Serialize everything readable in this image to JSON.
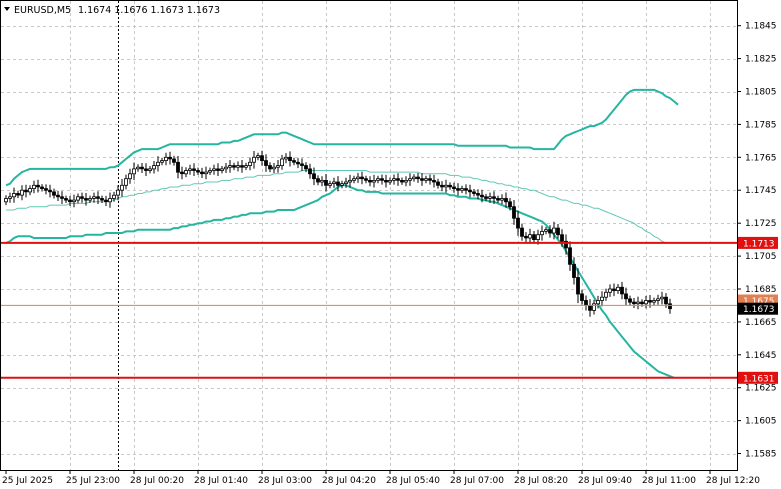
{
  "header": {
    "symbol": "EURUSD,M5",
    "ohlc": "1.1674 1.1676 1.1673 1.1673",
    "dropdown_icon": "triangle-down-icon"
  },
  "colors": {
    "background": "#ffffff",
    "grid": "#c8c8c8",
    "candle": "#000000",
    "bollinger_bands": "#26b5a0",
    "bollinger_middle": "#60c8b8",
    "support_line": "#e01010",
    "price_line": "#e08050",
    "badge_red": "#e01010",
    "badge_current": "#000000"
  },
  "chart_data": {
    "type": "candlestick",
    "symbol": "EURUSD",
    "timeframe": "M5",
    "ylim": [
      1.1575,
      1.186
    ],
    "y_ticks": [
      "1.1845",
      "1.1825",
      "1.1805",
      "1.1785",
      "1.1765",
      "1.1745",
      "1.1725",
      "1.1705",
      "1.1685",
      "1.1665",
      "1.1645",
      "1.1625",
      "1.1605",
      "1.1585"
    ],
    "x_ticks": [
      "25 Jul 2025",
      "25 Jul 23:00",
      "28 Jul 00:20",
      "28 Jul 01:40",
      "28 Jul 03:00",
      "28 Jul 04:20",
      "28 Jul 05:40",
      "28 Jul 07:00",
      "28 Jul 08:20",
      "28 Jul 09:40",
      "28 Jul 11:00",
      "28 Jul 12:20"
    ],
    "x_tick_index": [
      0,
      16,
      32,
      48,
      64,
      80,
      96,
      112,
      128,
      144,
      160,
      176
    ],
    "horizontal_lines": [
      {
        "label": "1.1713",
        "value": 1.1713,
        "role": "support"
      },
      {
        "label": "1.1631",
        "value": 1.1631,
        "role": "support"
      }
    ],
    "current_price": {
      "label": "1.1673",
      "value": 1.1673,
      "line_value": 1.1675
    },
    "hidden_badge_value": "1.1675",
    "vertical_marker_index": 28,
    "closes": [
      1.174,
      1.1741,
      1.1743,
      1.1742,
      1.1745,
      1.1744,
      1.1746,
      1.1748,
      1.1747,
      1.1746,
      1.1745,
      1.1744,
      1.1742,
      1.1741,
      1.174,
      1.1739,
      1.1738,
      1.1739,
      1.1741,
      1.174,
      1.1739,
      1.174,
      1.1741,
      1.174,
      1.1739,
      1.1738,
      1.174,
      1.1742,
      1.1745,
      1.1748,
      1.1752,
      1.1755,
      1.1758,
      1.1759,
      1.1758,
      1.1757,
      1.1758,
      1.176,
      1.1762,
      1.1763,
      1.1765,
      1.1764,
      1.1762,
      1.1756,
      1.1755,
      1.1757,
      1.1758,
      1.1757,
      1.1756,
      1.1755,
      1.1756,
      1.1757,
      1.1758,
      1.1757,
      1.1758,
      1.1759,
      1.176,
      1.1759,
      1.176,
      1.1759,
      1.176,
      1.1762,
      1.1765,
      1.1766,
      1.1763,
      1.176,
      1.1758,
      1.1759,
      1.176,
      1.1764,
      1.1765,
      1.1763,
      1.1762,
      1.1761,
      1.176,
      1.1758,
      1.1755,
      1.1752,
      1.175,
      1.1751,
      1.1748,
      1.1749,
      1.175,
      1.1748,
      1.1749,
      1.175,
      1.1751,
      1.1752,
      1.1753,
      1.1752,
      1.1751,
      1.175,
      1.1751,
      1.1752,
      1.1751,
      1.175,
      1.1751,
      1.1752,
      1.1751,
      1.175,
      1.1751,
      1.1752,
      1.1753,
      1.1752,
      1.1751,
      1.1752,
      1.1751,
      1.175,
      1.1748,
      1.1747,
      1.1748,
      1.1747,
      1.1746,
      1.1745,
      1.1746,
      1.1745,
      1.1744,
      1.1743,
      1.1742,
      1.1741,
      1.174,
      1.1741,
      1.174,
      1.1739,
      1.174,
      1.1738,
      1.1735,
      1.1728,
      1.1722,
      1.1717,
      1.1716,
      1.1718,
      1.1715,
      1.1718,
      1.172,
      1.1721,
      1.1719,
      1.1722,
      1.1718,
      1.1714,
      1.171,
      1.17,
      1.1692,
      1.1682,
      1.1678,
      1.1675,
      1.1672,
      1.1676,
      1.1678,
      1.168,
      1.1683,
      1.1685,
      1.1684,
      1.1686,
      1.1682,
      1.1679,
      1.1677,
      1.1676,
      1.1677,
      1.1676,
      1.1678,
      1.1677,
      1.1678,
      1.1679,
      1.168,
      1.1676,
      1.1673
    ],
    "bollinger_upper": [
      1.1748,
      1.1749,
      1.1752,
      1.1754,
      1.1756,
      1.1757,
      1.1758,
      1.1758,
      1.1758,
      1.1758,
      1.1758,
      1.1758,
      1.1758,
      1.1758,
      1.1758,
      1.1758,
      1.1758,
      1.1758,
      1.1758,
      1.1758,
      1.1758,
      1.1758,
      1.1758,
      1.1758,
      1.1758,
      1.1758,
      1.1759,
      1.1759,
      1.176,
      1.1762,
      1.1764,
      1.1766,
      1.1768,
      1.1769,
      1.177,
      1.177,
      1.177,
      1.177,
      1.177,
      1.1771,
      1.1772,
      1.1773,
      1.1773,
      1.1773,
      1.1773,
      1.1773,
      1.1773,
      1.1773,
      1.1773,
      1.1773,
      1.1773,
      1.1773,
      1.1773,
      1.1773,
      1.1774,
      1.1774,
      1.1774,
      1.1775,
      1.1775,
      1.1776,
      1.1777,
      1.1778,
      1.1779,
      1.1779,
      1.1779,
      1.1779,
      1.1779,
      1.1779,
      1.1779,
      1.178,
      1.178,
      1.1779,
      1.1778,
      1.1777,
      1.1776,
      1.1775,
      1.1774,
      1.1773,
      1.1773,
      1.1773,
      1.1773,
      1.1773,
      1.1773,
      1.1773,
      1.1773,
      1.1773,
      1.1773,
      1.1773,
      1.1773,
      1.1773,
      1.1773,
      1.1773,
      1.1773,
      1.1773,
      1.1773,
      1.1773,
      1.1773,
      1.1773,
      1.1773,
      1.1773,
      1.1773,
      1.1773,
      1.1773,
      1.1773,
      1.1773,
      1.1773,
      1.1773,
      1.1773,
      1.1773,
      1.1773,
      1.1773,
      1.1773,
      1.1773,
      1.1772,
      1.1772,
      1.1772,
      1.1772,
      1.1772,
      1.1772,
      1.1772,
      1.1772,
      1.1772,
      1.1772,
      1.1772,
      1.1772,
      1.1772,
      1.1771,
      1.1771,
      1.1771,
      1.1771,
      1.1771,
      1.1771,
      1.177,
      1.177,
      1.177,
      1.177,
      1.177,
      1.177,
      1.1773,
      1.1776,
      1.1778,
      1.1779,
      1.178,
      1.1781,
      1.1782,
      1.1783,
      1.1784,
      1.1784,
      1.1785,
      1.1786,
      1.1788,
      1.1791,
      1.1794,
      1.1797,
      1.18,
      1.1803,
      1.1805,
      1.1806,
      1.1806,
      1.1806,
      1.1806,
      1.1806,
      1.1806,
      1.1805,
      1.1804,
      1.1802,
      1.1801,
      1.1799,
      1.1797
    ],
    "bollinger_middle": [
      1.1733,
      1.1733,
      1.1733,
      1.1734,
      1.1734,
      1.1734,
      1.1735,
      1.1735,
      1.1735,
      1.1735,
      1.1735,
      1.1736,
      1.1736,
      1.1736,
      1.1736,
      1.1736,
      1.1737,
      1.1737,
      1.1737,
      1.1737,
      1.1737,
      1.1738,
      1.1738,
      1.1738,
      1.1738,
      1.1738,
      1.1739,
      1.1739,
      1.174,
      1.1741,
      1.1741,
      1.1742,
      1.1742,
      1.1743,
      1.1743,
      1.1744,
      1.1744,
      1.1745,
      1.1745,
      1.1746,
      1.1746,
      1.1747,
      1.1747,
      1.1747,
      1.1748,
      1.1748,
      1.1748,
      1.1749,
      1.1749,
      1.1749,
      1.175,
      1.175,
      1.175,
      1.175,
      1.1751,
      1.1751,
      1.1751,
      1.1752,
      1.1752,
      1.1752,
      1.1753,
      1.1753,
      1.1753,
      1.1754,
      1.1754,
      1.1754,
      1.1754,
      1.1755,
      1.1755,
      1.1755,
      1.1756,
      1.1756,
      1.1756,
      1.1756,
      1.1757,
      1.1757,
      1.1757,
      1.1757,
      1.1757,
      1.1757,
      1.1757,
      1.1757,
      1.1757,
      1.1757,
      1.1757,
      1.1757,
      1.1757,
      1.1757,
      1.1757,
      1.1757,
      1.1757,
      1.1756,
      1.1756,
      1.1756,
      1.1756,
      1.1756,
      1.1756,
      1.1756,
      1.1756,
      1.1756,
      1.1756,
      1.1756,
      1.1756,
      1.1756,
      1.1755,
      1.1755,
      1.1755,
      1.1755,
      1.1755,
      1.1755,
      1.1755,
      1.1754,
      1.1754,
      1.1754,
      1.1753,
      1.1753,
      1.1753,
      1.1752,
      1.1752,
      1.1751,
      1.1751,
      1.175,
      1.175,
      1.1749,
      1.1749,
      1.1748,
      1.1748,
      1.1747,
      1.1747,
      1.1746,
      1.1746,
      1.1745,
      1.1745,
      1.1744,
      1.1743,
      1.1742,
      1.1741,
      1.1741,
      1.174,
      1.1739,
      1.1739,
      1.1738,
      1.1737,
      1.1737,
      1.1736,
      1.1736,
      1.1735,
      1.1734,
      1.1734,
      1.1733,
      1.1732,
      1.1731,
      1.173,
      1.1729,
      1.1728,
      1.1727,
      1.1726,
      1.1725,
      1.1723,
      1.1722,
      1.172,
      1.1719,
      1.1717,
      1.1716,
      1.1714,
      1.1713
    ],
    "bollinger_lower": [
      1.1713,
      1.1714,
      1.1716,
      1.1717,
      1.1717,
      1.1717,
      1.1717,
      1.1716,
      1.1716,
      1.1716,
      1.1716,
      1.1716,
      1.1716,
      1.1716,
      1.1716,
      1.1716,
      1.1717,
      1.1717,
      1.1717,
      1.1717,
      1.1718,
      1.1718,
      1.1718,
      1.1718,
      1.1718,
      1.1719,
      1.1719,
      1.1719,
      1.1719,
      1.1719,
      1.172,
      1.172,
      1.172,
      1.1721,
      1.1721,
      1.1721,
      1.1721,
      1.1721,
      1.1721,
      1.1721,
      1.1721,
      1.1721,
      1.1722,
      1.1722,
      1.1723,
      1.1723,
      1.1724,
      1.1724,
      1.1725,
      1.1725,
      1.1726,
      1.1726,
      1.1727,
      1.1727,
      1.1727,
      1.1728,
      1.1728,
      1.1729,
      1.1729,
      1.173,
      1.173,
      1.1731,
      1.1731,
      1.1731,
      1.1731,
      1.1732,
      1.1732,
      1.1732,
      1.1733,
      1.1733,
      1.1733,
      1.1733,
      1.1733,
      1.1734,
      1.1735,
      1.1736,
      1.1737,
      1.1738,
      1.1739,
      1.1741,
      1.1742,
      1.1743,
      1.1745,
      1.1747,
      1.1748,
      1.1748,
      1.1747,
      1.1746,
      1.1745,
      1.1745,
      1.1744,
      1.1744,
      1.1744,
      1.1744,
      1.1743,
      1.1743,
      1.1743,
      1.1743,
      1.1743,
      1.1743,
      1.1743,
      1.1743,
      1.1743,
      1.1743,
      1.1743,
      1.1743,
      1.1743,
      1.1743,
      1.1743,
      1.1743,
      1.1743,
      1.1742,
      1.1742,
      1.1741,
      1.1741,
      1.1741,
      1.174,
      1.174,
      1.174,
      1.1739,
      1.1739,
      1.1738,
      1.1738,
      1.1737,
      1.1736,
      1.1735,
      1.1734,
      1.1733,
      1.1732,
      1.1731,
      1.173,
      1.1729,
      1.1728,
      1.1727,
      1.1726,
      1.1724,
      1.1721,
      1.1718,
      1.1715,
      1.1712,
      1.1708,
      1.1704,
      1.17,
      1.1696,
      1.1692,
      1.1688,
      1.1684,
      1.168,
      1.1676,
      1.1672,
      1.1669,
      1.1665,
      1.1662,
      1.1659,
      1.1656,
      1.1653,
      1.165,
      1.1647,
      1.1645,
      1.1643,
      1.1641,
      1.1639,
      1.1637,
      1.1635,
      1.1634,
      1.1633,
      1.1632,
      1.1631
    ]
  }
}
